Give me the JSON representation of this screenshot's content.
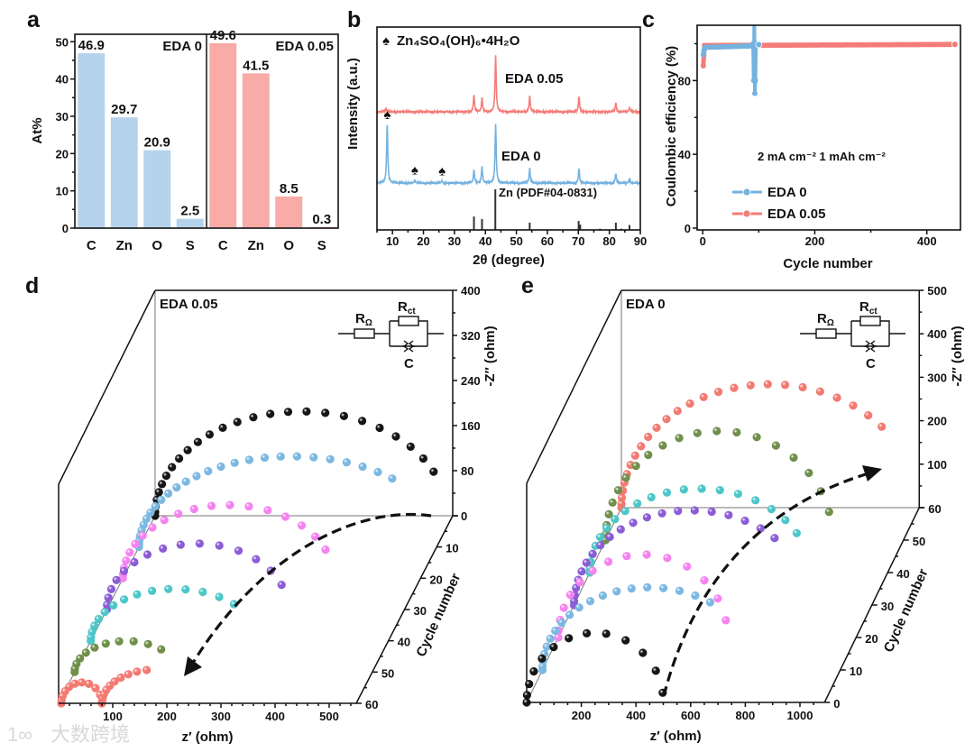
{
  "panel_labels": {
    "a": "a",
    "b": "b",
    "c": "c",
    "d": "d",
    "e": "e"
  },
  "watermark": {
    "logo": "1∞",
    "text": "大数跨境"
  },
  "chart_data": [
    {
      "panel": "a",
      "type": "bar",
      "title": "",
      "xlabel": "",
      "ylabel": "At%",
      "ylim": [
        0,
        52
      ],
      "yticks": [
        0,
        10,
        20,
        30,
        40,
        50
      ],
      "groups": [
        {
          "name": "EDA 0",
          "color": "#b5d3ec",
          "categories": [
            "C",
            "Zn",
            "O",
            "S"
          ],
          "values": [
            46.9,
            29.7,
            20.9,
            2.5
          ]
        },
        {
          "name": "EDA 0.05",
          "color": "#f9aba7",
          "categories": [
            "C",
            "Zn",
            "O",
            "S"
          ],
          "values": [
            49.6,
            41.5,
            8.5,
            0.3
          ]
        }
      ]
    },
    {
      "panel": "b",
      "type": "line",
      "xlabel": "2θ (degree)",
      "ylabel": "Intensity (a.u.)",
      "xlim": [
        5,
        90
      ],
      "xticks": [
        10,
        20,
        30,
        40,
        50,
        60,
        70,
        80,
        90
      ],
      "annotation": {
        "symbol": "♠",
        "phase": "Zn₄SO₄(OH)₆•4H₂O"
      },
      "phase_marker_positions": [
        8.3,
        17.2,
        26.0
      ],
      "series": [
        {
          "name": "EDA 0.05",
          "color": "#f47c78",
          "peaks": [
            [
              7.9,
              6
            ],
            [
              36.3,
              30
            ],
            [
              38.9,
              24
            ],
            [
              43.3,
              100
            ],
            [
              54.3,
              28
            ],
            [
              70.2,
              27
            ],
            [
              82.1,
              16
            ],
            [
              86.5,
              8
            ]
          ]
        },
        {
          "name": "EDA 0",
          "color": "#74b2e0",
          "peaks": [
            [
              8.3,
              100
            ],
            [
              17.2,
              5
            ],
            [
              26.0,
              4
            ],
            [
              36.3,
              22
            ],
            [
              38.9,
              27
            ],
            [
              43.3,
              100
            ],
            [
              54.3,
              25
            ],
            [
              70.2,
              24
            ],
            [
              82.1,
              16
            ],
            [
              86.5,
              7
            ]
          ]
        }
      ],
      "reference": {
        "name": "Zn (PDF#04-0831)",
        "color": "#333333",
        "peaks": [
          [
            36.3,
            33
          ],
          [
            38.9,
            27
          ],
          [
            43.2,
            100
          ],
          [
            54.3,
            18
          ],
          [
            70.1,
            22
          ],
          [
            70.6,
            13
          ],
          [
            77.0,
            3
          ],
          [
            82.1,
            18
          ],
          [
            83.9,
            3
          ],
          [
            86.5,
            12
          ]
        ]
      }
    },
    {
      "panel": "c",
      "type": "line",
      "xlabel": "Cycle number",
      "ylabel": "Coulombic efficiency (%)",
      "xlim": [
        -10,
        460
      ],
      "ylim": [
        -1,
        110
      ],
      "xticks": [
        0,
        200,
        400
      ],
      "yticks": [
        0,
        40,
        80
      ],
      "annotation": "2 mA cm⁻²    1 mAh cm⁻²",
      "legend_position": "bottom-right",
      "series": [
        {
          "name": "EDA 0",
          "color": "#74b2e0",
          "points": [
            [
              1,
              94
            ],
            [
              2,
              96
            ],
            [
              4,
              98
            ],
            [
              89,
              98.8
            ],
            [
              90,
              100
            ],
            [
              91,
              80
            ],
            [
              92,
              112
            ],
            [
              93,
              73
            ],
            [
              94,
              80
            ],
            [
              95,
              100
            ],
            [
              100,
              99.5
            ]
          ]
        },
        {
          "name": "EDA 0.05",
          "color": "#f47c78",
          "points": [
            [
              1,
              88
            ],
            [
              3,
              99
            ],
            [
              450,
              99.6
            ]
          ]
        }
      ]
    },
    {
      "panel": "d",
      "type": "scatter",
      "title": "EDA 0.05",
      "xlabel": "z′ (ohm)",
      "ylabel": "-Z″ (ohm)",
      "zlabel": "Cycle number",
      "xlim": [
        0,
        550
      ],
      "ylim": [
        0,
        400
      ],
      "cycle_lim": [
        0,
        60
      ],
      "xticks": [
        100,
        200,
        300,
        400,
        500
      ],
      "yticks": [
        0,
        80,
        160,
        240,
        320,
        400
      ],
      "cycle_ticks": [
        10,
        20,
        30,
        40,
        50,
        60
      ],
      "circuit": {
        "r_ohm": {
          "main": "R",
          "sub": "Ω"
        },
        "r_ct": {
          "main": "R",
          "sub": "ct"
        },
        "cpe": "C"
      },
      "series": [
        {
          "cycle": 0,
          "color": "#151515",
          "arcs": [
            {
              "z0": 0,
              "diameter": 540,
              "peak": 185,
              "theta_end": 155
            }
          ]
        },
        {
          "cycle": 10,
          "color": "#7ab8e2",
          "arcs": [
            {
              "z0": 0,
              "diameter": 565,
              "peak": 161,
              "theta_end": 131
            }
          ]
        },
        {
          "cycle": 20,
          "color": "#f582f0",
          "arcs": [
            {
              "z0": 0,
              "diameter": 390,
              "peak": 130,
              "theta_end": 157
            }
          ]
        },
        {
          "cycle": 30,
          "color": "#8b5cd6",
          "arcs": [
            {
              "z0": 0,
              "diameter": 335,
              "peak": 117,
              "theta_end": 158
            }
          ]
        },
        {
          "cycle": 40,
          "color": "#4dc6c8",
          "arcs": [
            {
              "z0": 0,
              "diameter": 310,
              "peak": 92,
              "theta_end": 135
            }
          ]
        },
        {
          "cycle": 50,
          "color": "#6f8f4a",
          "arcs": [
            {
              "z0": 0,
              "diameter": 190,
              "peak": 55,
              "theta_end": 133
            }
          ]
        },
        {
          "cycle": 60,
          "color": "#f27a72",
          "arcs": [
            {
              "z0": 5,
              "diameter": 75,
              "peak": 37,
              "theta_end": 180
            },
            {
              "z0": 80,
              "diameter": 200,
              "peak": 60,
              "theta_end": 80
            }
          ]
        }
      ]
    },
    {
      "panel": "e",
      "type": "scatter",
      "title": "EDA 0",
      "xlabel": "z′ (ohm)",
      "ylabel": "-Z″ (ohm)",
      "zlabel": "Cycle number",
      "xlim": [
        0,
        1090
      ],
      "ylim": [
        0,
        500
      ],
      "cycle_lim": [
        0,
        60
      ],
      "xticks": [
        200,
        400,
        600,
        800,
        1000
      ],
      "yticks": [
        100,
        200,
        300,
        400,
        500
      ],
      "cycle_ticks": [
        0,
        10,
        20,
        30,
        40,
        50,
        60
      ],
      "circuit": {
        "r_ohm": {
          "main": "R",
          "sub": "Ω"
        },
        "r_ct": {
          "main": "R",
          "sub": "ct"
        },
        "cpe": "C"
      },
      "series": [
        {
          "cycle": 0,
          "color": "#151515",
          "arcs": [
            {
              "z0": 0,
              "diameter": 500,
              "peak": 160,
              "theta_end": 172
            }
          ]
        },
        {
          "cycle": 10,
          "color": "#7ab8e2",
          "arcs": [
            {
              "z0": 0,
              "diameter": 780,
              "peak": 190,
              "theta_end": 125
            }
          ]
        },
        {
          "cycle": 20,
          "color": "#f582f0",
          "arcs": [
            {
              "z0": 0,
              "diameter": 620,
              "peak": 191,
              "theta_end": 168
            }
          ]
        },
        {
          "cycle": 30,
          "color": "#8b5cd6",
          "arcs": [
            {
              "z0": 0,
              "diameter": 860,
              "peak": 218,
              "theta_end": 135
            }
          ]
        },
        {
          "cycle": 40,
          "color": "#4dc6c8",
          "arcs": [
            {
              "z0": 0,
              "diameter": 804,
              "peak": 193,
              "theta_end": 152
            }
          ]
        },
        {
          "cycle": 50,
          "color": "#6f8f4a",
          "arcs": [
            {
              "z0": 0,
              "diameter": 832,
              "peak": 251,
              "theta_end": 165
            }
          ]
        },
        {
          "cycle": 60,
          "color": "#f27a72",
          "arcs": [
            {
              "z0": 0,
              "diameter": 1086,
              "peak": 284,
              "theta_end": 139
            }
          ]
        }
      ]
    }
  ]
}
